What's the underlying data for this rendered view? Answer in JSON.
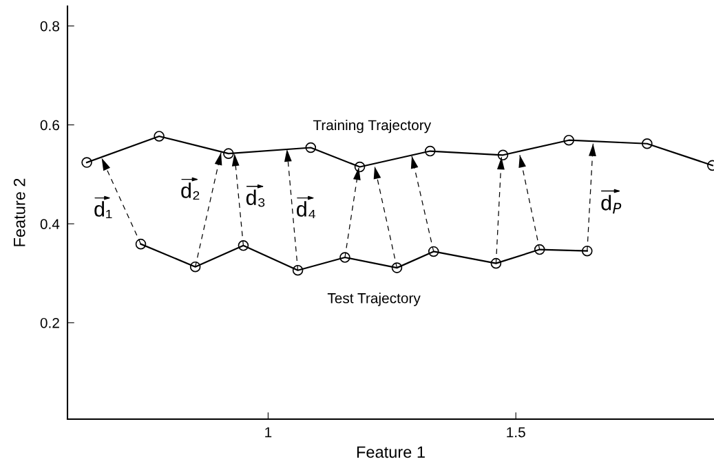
{
  "chart_data": {
    "type": "line",
    "xlabel": "Feature 1",
    "ylabel": "Feature 2",
    "xlim": [
      0.595,
      1.9
    ],
    "xticks": [
      1,
      1.5
    ],
    "ylim": [
      0.005,
      0.84
    ],
    "yticks": [
      0.2,
      0.4,
      0.6,
      0.8
    ],
    "grid": false,
    "legend": false,
    "marker": "circle",
    "line_style": "solid",
    "series": [
      {
        "color": "#000000",
        "x": [
          0.634,
          0.78,
          0.92,
          1.086,
          1.185,
          1.327,
          1.474,
          1.607,
          1.765,
          1.897
        ],
        "values": [
          0.524,
          0.577,
          0.542,
          0.554,
          0.515,
          0.547,
          0.539,
          0.569,
          0.562,
          0.518
        ]
      },
      {
        "color": "#000000",
        "x": [
          0.743,
          0.853,
          0.95,
          1.06,
          1.155,
          1.26,
          1.334,
          1.46,
          1.548,
          1.644
        ],
        "values": [
          0.359,
          0.313,
          0.356,
          0.306,
          0.332,
          0.311,
          0.344,
          0.32,
          0.348,
          0.345
        ]
      },
      {
        "color": "#000000",
        "marker": "none",
        "line_style": "dashed",
        "x": [
          0.743,
          0.664
        ],
        "values": [
          0.359,
          0.533
        ]
      },
      {
        "color": "#000000",
        "marker": "none",
        "line_style": "dashed",
        "x": [
          0.853,
          0.905
        ],
        "values": [
          0.313,
          0.544
        ]
      },
      {
        "color": "#000000",
        "marker": "none",
        "line_style": "dashed",
        "x": [
          0.95,
          0.932
        ],
        "values": [
          0.356,
          0.542
        ]
      },
      {
        "color": "#000000",
        "marker": "none",
        "line_style": "dashed",
        "x": [
          1.06,
          1.038
        ],
        "values": [
          0.306,
          0.551
        ]
      },
      {
        "color": "#000000",
        "marker": "none",
        "line_style": "dashed",
        "x": [
          1.155,
          1.183
        ],
        "values": [
          0.332,
          0.514
        ]
      },
      {
        "color": "#000000",
        "marker": "none",
        "line_style": "dashed",
        "x": [
          1.26,
          1.215
        ],
        "values": [
          0.311,
          0.516
        ]
      },
      {
        "color": "#000000",
        "marker": "none",
        "line_style": "dashed",
        "x": [
          1.334,
          1.29
        ],
        "values": [
          0.344,
          0.537
        ]
      },
      {
        "color": "#000000",
        "marker": "none",
        "line_style": "dashed",
        "x": [
          1.46,
          1.471
        ],
        "values": [
          0.32,
          0.535
        ]
      },
      {
        "color": "#000000",
        "marker": "none",
        "line_style": "dashed",
        "x": [
          1.548,
          1.508
        ],
        "values": [
          0.348,
          0.539
        ]
      },
      {
        "color": "#000000",
        "marker": "none",
        "line_style": "dashed",
        "x": [
          1.644,
          1.656
        ],
        "values": [
          0.345,
          0.562
        ]
      }
    ],
    "annotations": [
      "Training Trajectory",
      "Test Trajectory",
      "d₁",
      "d₂",
      "d₃",
      "d₄",
      "d$_{P}$"
    ]
  }
}
